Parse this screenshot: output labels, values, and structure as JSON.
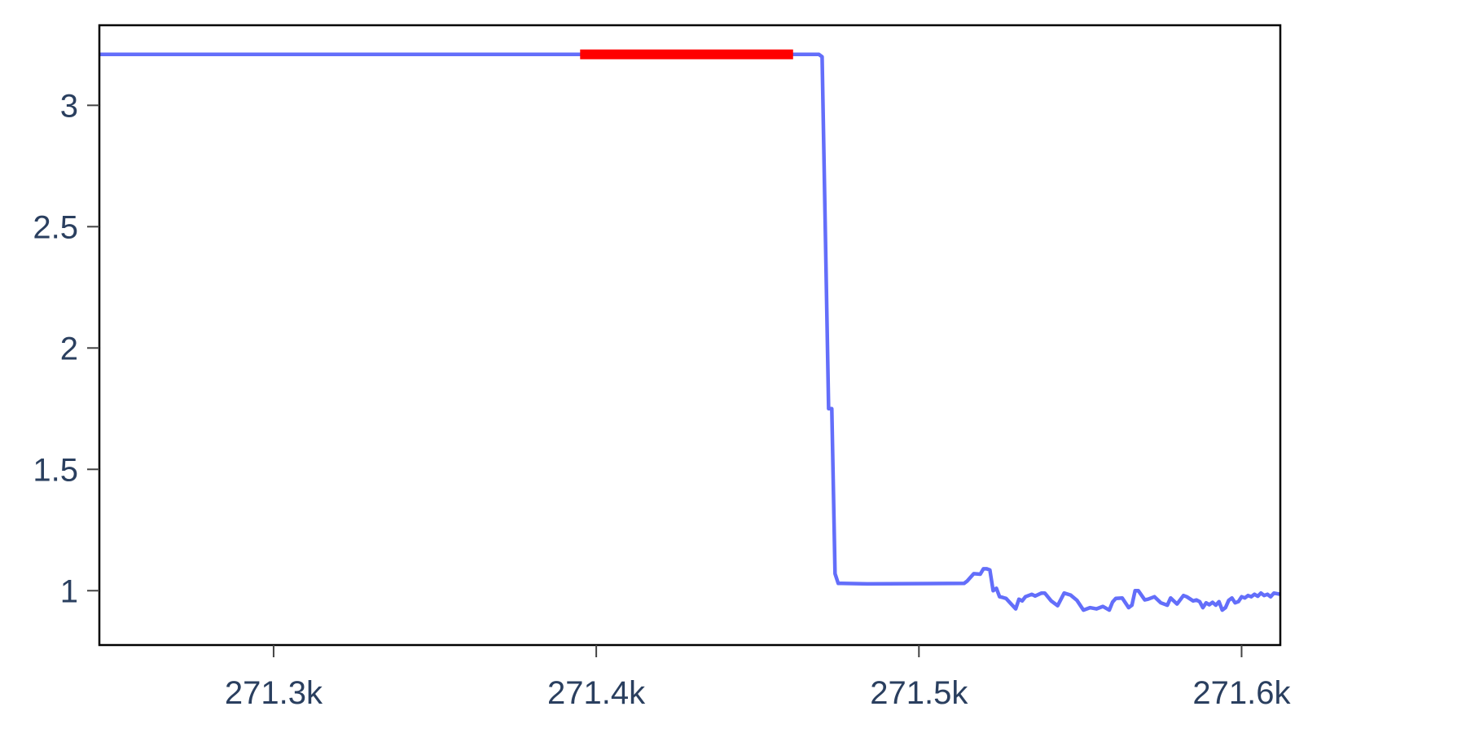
{
  "chart_data": {
    "type": "line",
    "title": "",
    "xlabel": "",
    "ylabel": "",
    "xlim": [
      271246,
      271612
    ],
    "ylim": [
      0.776,
      3.33
    ],
    "x_ticks": [
      271300,
      271400,
      271500,
      271600
    ],
    "x_tick_labels": [
      "271.3k",
      "271.4k",
      "271.5k",
      "271.6k"
    ],
    "y_ticks": [
      1,
      1.5,
      2,
      2.5,
      3
    ],
    "y_tick_labels": [
      "1",
      "1.5",
      "2",
      "2.5",
      "3"
    ],
    "grid": false,
    "colors": {
      "line": "#636efa",
      "highlight": "#ff0000",
      "axis": "#000000",
      "tick_text": "#2a3f5f"
    },
    "series": [
      {
        "x": [
          271246,
          271420,
          271469,
          271470,
          271472,
          271473,
          271474,
          271475,
          271476,
          271484,
          271514,
          271515,
          271517,
          271519,
          271520,
          271521,
          271522,
          271523,
          271524,
          271525,
          271526,
          271527,
          271530,
          271531,
          271532,
          271533,
          271535,
          271536,
          271538,
          271539,
          271541,
          271543,
          271545,
          271547,
          271549,
          271551,
          271553,
          271555,
          271557,
          271559,
          271560,
          271561,
          271563,
          271565,
          271566,
          271567,
          271568,
          271570,
          271571,
          271573,
          271575,
          271577,
          271578,
          271580,
          271582,
          271583,
          271585,
          271586,
          271587,
          271588,
          271589,
          271590,
          271591,
          271592,
          271593,
          271594,
          271595,
          271596,
          271597,
          271598,
          271599,
          271600,
          271601,
          271602,
          271603,
          271604,
          271605,
          271606,
          271607,
          271608,
          271609,
          271610,
          271612
        ],
        "y": [
          3.21,
          3.21,
          3.21,
          3.2,
          1.75,
          1.75,
          1.07,
          1.03,
          1.03,
          1.028,
          1.03,
          1.04,
          1.07,
          1.068,
          1.09,
          1.09,
          1.085,
          1.0,
          1.01,
          0.975,
          0.972,
          0.968,
          0.925,
          0.965,
          0.958,
          0.975,
          0.985,
          0.978,
          0.99,
          0.99,
          0.958,
          0.938,
          0.99,
          0.982,
          0.96,
          0.92,
          0.93,
          0.925,
          0.935,
          0.92,
          0.953,
          0.968,
          0.97,
          0.93,
          0.94,
          1.0,
          1.0,
          0.962,
          0.965,
          0.975,
          0.95,
          0.94,
          0.97,
          0.945,
          0.98,
          0.975,
          0.958,
          0.962,
          0.955,
          0.93,
          0.95,
          0.942,
          0.952,
          0.94,
          0.955,
          0.92,
          0.93,
          0.96,
          0.97,
          0.95,
          0.955,
          0.975,
          0.97,
          0.98,
          0.975,
          0.985,
          0.977,
          0.99,
          0.98,
          0.985,
          0.975,
          0.99,
          0.985
        ]
      },
      {
        "x": [
          271395,
          271461
        ],
        "y": [
          3.21,
          3.21
        ]
      }
    ]
  }
}
